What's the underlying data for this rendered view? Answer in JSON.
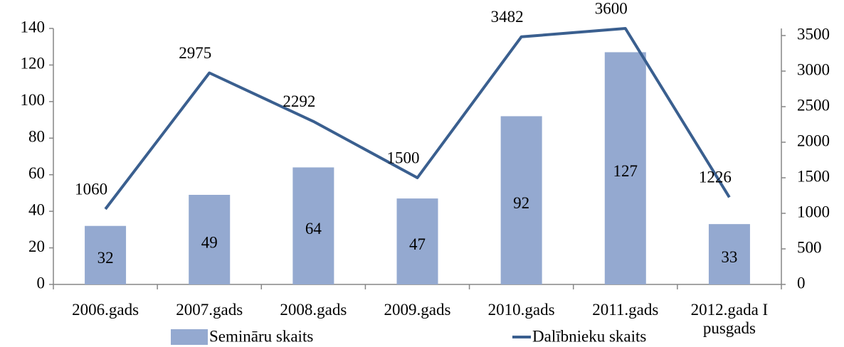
{
  "chart_data": {
    "type": "bar_line",
    "categories": [
      "2006.gads",
      "2007.gads",
      "2008.gads",
      "2009.gads",
      "2010.gads",
      "2011.gads",
      "2012.gada I pusgads"
    ],
    "series": [
      {
        "name": "Semināru skaits",
        "type": "bar",
        "color": "#94a9d0",
        "values": [
          32,
          49,
          64,
          47,
          92,
          127,
          33
        ]
      },
      {
        "name": "Dalībnieku skaits",
        "type": "line",
        "axis": "y2",
        "color": "#3a5f8f",
        "values": [
          1060,
          2975,
          2292,
          1500,
          3482,
          3600,
          1226
        ]
      }
    ],
    "ylim": [
      0,
      140
    ],
    "yticks": [
      0,
      20,
      40,
      60,
      80,
      100,
      120,
      140
    ],
    "y2lim": [
      0,
      3600
    ],
    "y2ticks": [
      0,
      500,
      1000,
      1500,
      2000,
      2500,
      3000,
      3500
    ],
    "legend": "bottom"
  }
}
